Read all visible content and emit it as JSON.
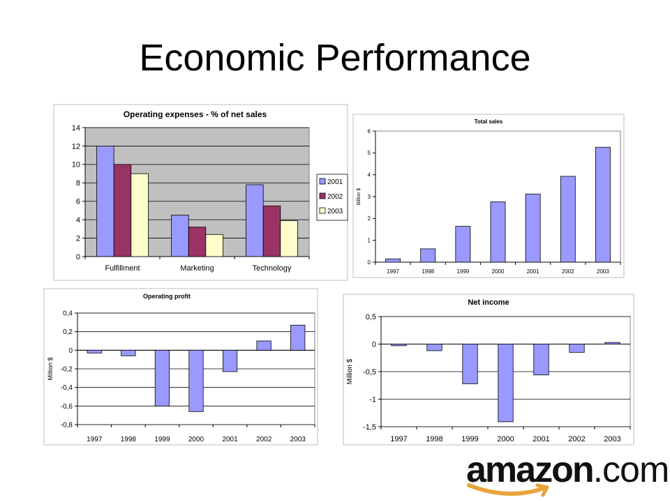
{
  "slide": {
    "title": "Economic Performance"
  },
  "logo": {
    "text_main": "amazon",
    "text_suffix": ".com"
  },
  "chart_data": [
    {
      "id": "opex",
      "type": "bar",
      "title": "Operating expenses - % of net sales",
      "xlabel": "",
      "ylabel": "",
      "categories": [
        "Fulfillment",
        "Marketing",
        "Technology"
      ],
      "series": [
        {
          "name": "2001",
          "values": [
            12,
            4.5,
            7.8
          ],
          "color": "#9999ff"
        },
        {
          "name": "2002",
          "values": [
            10,
            3.2,
            5.5
          ],
          "color": "#993366"
        },
        {
          "name": "2003",
          "values": [
            9,
            2.4,
            3.9
          ],
          "color": "#ffffcc"
        }
      ],
      "ylim": [
        0,
        14
      ],
      "yticks": [
        "0",
        "2",
        "4",
        "6",
        "8",
        "10",
        "12",
        "14"
      ],
      "grid": true,
      "plot_background": "#c0c0c0",
      "legend": "right"
    },
    {
      "id": "sales",
      "type": "bar",
      "title": "Total sales",
      "xlabel": "",
      "ylabel": "Billion $",
      "categories": [
        "1997",
        "1998",
        "1999",
        "2000",
        "2001",
        "2002",
        "2003"
      ],
      "values": [
        0.15,
        0.61,
        1.64,
        2.76,
        3.12,
        3.93,
        5.26
      ],
      "color": "#9999ff",
      "ylim": [
        0,
        6
      ],
      "yticks": [
        "0",
        "1",
        "2",
        "3",
        "4",
        "5",
        "6"
      ],
      "grid": false
    },
    {
      "id": "oprofit",
      "type": "bar",
      "title": "Operating profit",
      "xlabel": "",
      "ylabel": "Million $",
      "categories": [
        "1997",
        "1998",
        "1999",
        "2000",
        "2001",
        "2002",
        "2003"
      ],
      "values": [
        -0.03,
        -0.06,
        -0.6,
        -0.66,
        -0.23,
        0.1,
        0.27
      ],
      "color": "#9999ff",
      "ylim": [
        -0.8,
        0.4
      ],
      "yticks": [
        "-0,8",
        "-0,6",
        "-0,4",
        "-0,2",
        "0",
        "0,2",
        "0,4"
      ],
      "grid": true
    },
    {
      "id": "netinc",
      "type": "bar",
      "title": "Net income",
      "xlabel": "",
      "ylabel": "Million $",
      "categories": [
        "1997",
        "1998",
        "1999",
        "2000",
        "2001",
        "2002",
        "2003"
      ],
      "values": [
        -0.03,
        -0.12,
        -0.72,
        -1.41,
        -0.56,
        -0.15,
        0.03
      ],
      "color": "#9999ff",
      "ylim": [
        -1.5,
        0.5
      ],
      "yticks": [
        "-1,5",
        "-1",
        "-0,5",
        "0",
        "0,5"
      ],
      "grid": true
    }
  ]
}
